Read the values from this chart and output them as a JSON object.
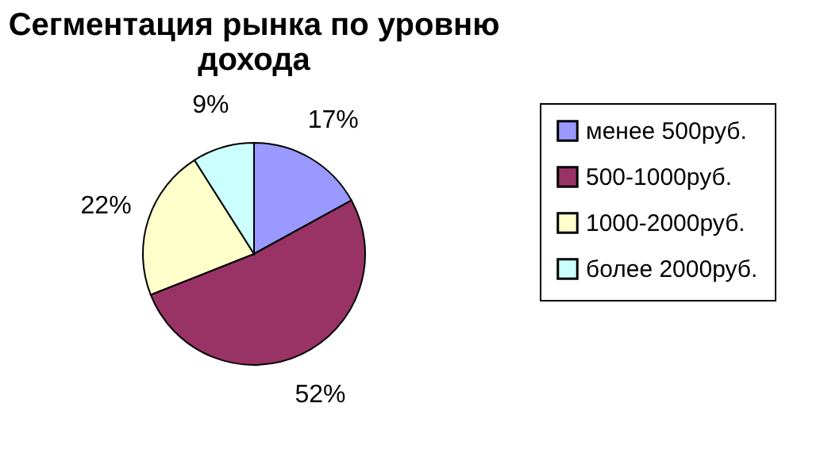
{
  "chart_data": {
    "type": "pie",
    "title": "Сегментация рынка по уровню дохода",
    "categories": [
      "менее 500руб.",
      "500-1000руб.",
      "1000-2000руб.",
      "более 2000руб."
    ],
    "values": [
      17,
      52,
      22,
      9
    ],
    "colors": [
      "#9999ff",
      "#993366",
      "#ffffcc",
      "#ccffff"
    ],
    "value_labels": [
      "17%",
      "52%",
      "22%",
      "9%"
    ],
    "legend": "right"
  }
}
